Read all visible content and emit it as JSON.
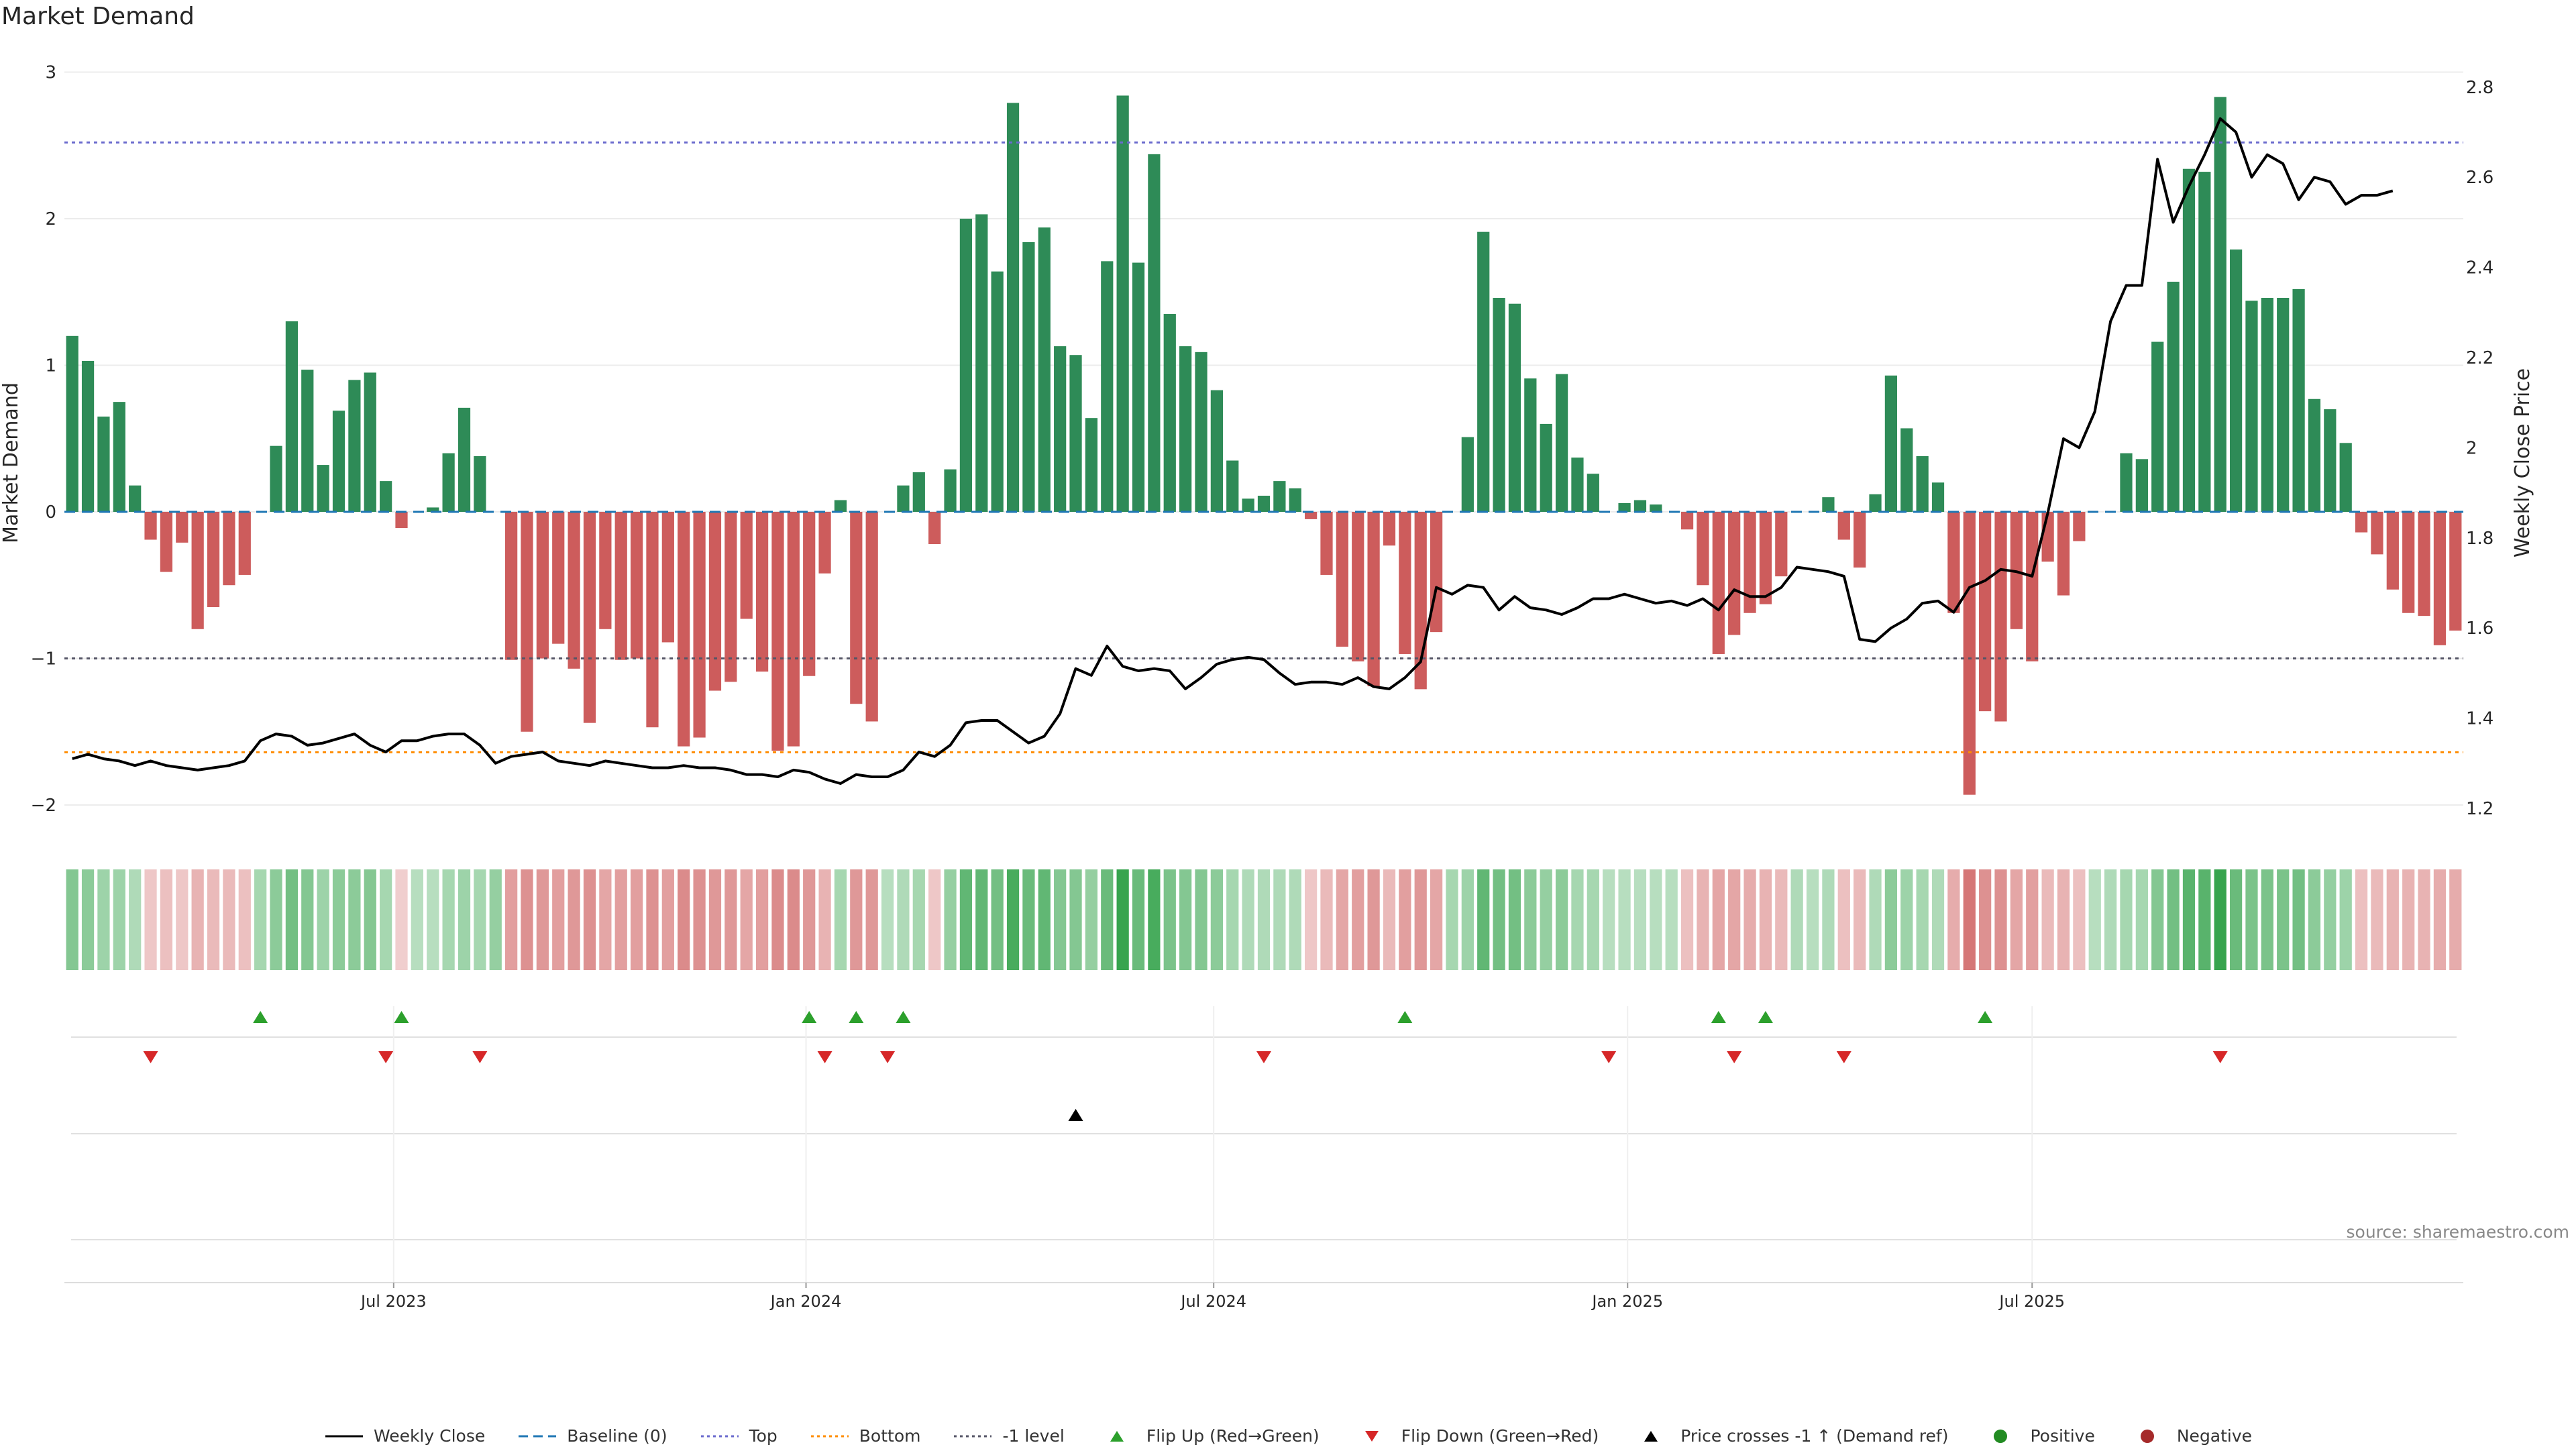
{
  "title": "Market Demand",
  "source": "source: sharemaestro.com",
  "colors": {
    "positive": "#2e8b57",
    "negative": "#cd5c5c",
    "price_line": "#000000",
    "baseline": "#1f77b4",
    "top": "#6a6acd",
    "bottom": "#ff8c00",
    "minus_one": "#555566",
    "flip_up": "#2ca02c",
    "flip_down": "#d62728",
    "cross_marker": "#000000"
  },
  "chart_data": {
    "type": "bar",
    "left_axis_label": "Market Demand",
    "right_axis_label": "Weekly Close Price",
    "left_ticks": [
      "3",
      "2",
      "1",
      "0",
      "−1",
      "−2"
    ],
    "right_ticks": [
      "2.8",
      "2.6",
      "2.4",
      "2.2",
      "2",
      "1.8",
      "1.6",
      "1.4",
      "1.2"
    ],
    "ylim_left": [
      -2.2,
      3.0
    ],
    "ylim_right": [
      1.16,
      2.83
    ],
    "x_ticks": [
      "Jul 2023",
      "Jan 2024",
      "Jul 2024",
      "Jan 2025",
      "Jul 2025"
    ],
    "x_tick_weeks": [
      21,
      47.3,
      73.3,
      99.7,
      125.5
    ],
    "levels": {
      "baseline": 0,
      "top": 2.52,
      "bottom": -1.64,
      "minus_one": -1
    },
    "demand": [
      1.2,
      1.03,
      0.65,
      0.75,
      0.18,
      -0.19,
      -0.41,
      -0.21,
      -0.8,
      -0.65,
      -0.5,
      -0.43,
      0,
      0.45,
      1.3,
      0.97,
      0.32,
      0.69,
      0.9,
      0.95,
      0.21,
      -0.11,
      0,
      0.03,
      0.4,
      0.71,
      0.38,
      0,
      -1.01,
      -1.5,
      -1.0,
      -0.9,
      -1.07,
      -1.44,
      -0.8,
      -1.01,
      -1.0,
      -1.47,
      -0.89,
      -1.6,
      -1.54,
      -1.22,
      -1.16,
      -0.73,
      -1.09,
      -1.63,
      -1.6,
      -1.12,
      -0.42,
      0.08,
      -1.31,
      -1.43,
      0,
      0.18,
      0.27,
      -0.22,
      0.29,
      2.0,
      2.03,
      1.64,
      2.79,
      1.84,
      1.94,
      1.13,
      1.07,
      0.64,
      1.71,
      2.84,
      1.7,
      2.44,
      1.35,
      1.13,
      1.09,
      0.83,
      0.35,
      0.09,
      0.11,
      0.21,
      0.16,
      -0.05,
      -0.43,
      -0.92,
      -1.02,
      -1.19,
      -0.23,
      -0.97,
      -1.21,
      -0.82,
      0,
      0.51,
      1.91,
      1.46,
      1.42,
      0.91,
      0.6,
      0.94,
      0.37,
      0.26,
      0,
      0.06,
      0.08,
      0.05,
      0,
      -0.12,
      -0.5,
      -0.97,
      -0.84,
      -0.69,
      -0.63,
      -0.44,
      0,
      0,
      0.1,
      -0.19,
      -0.38,
      0.12,
      0.93,
      0.57,
      0.38,
      0.2,
      -0.69,
      -1.93,
      -1.36,
      -1.43,
      -0.8,
      -1.02,
      -0.34,
      -0.57,
      -0.2,
      0,
      0,
      0.4,
      0.36,
      1.16,
      1.57,
      2.34,
      2.32,
      2.83,
      1.79,
      1.44,
      1.46,
      1.46,
      1.52,
      0.77,
      0.7,
      0.47,
      -0.14,
      -0.29,
      -0.53,
      -0.69,
      -0.71,
      -0.91,
      -0.81
    ],
    "close": [
      1.31,
      1.32,
      1.31,
      1.305,
      1.295,
      1.305,
      1.295,
      1.29,
      1.285,
      1.29,
      1.295,
      1.305,
      1.35,
      1.365,
      1.36,
      1.34,
      1.345,
      1.355,
      1.365,
      1.34,
      1.325,
      1.35,
      1.35,
      1.36,
      1.365,
      1.365,
      1.34,
      1.3,
      1.315,
      1.32,
      1.325,
      1.305,
      1.3,
      1.295,
      1.305,
      1.3,
      1.295,
      1.29,
      1.29,
      1.295,
      1.29,
      1.29,
      1.285,
      1.275,
      1.275,
      1.27,
      1.285,
      1.28,
      1.265,
      1.255,
      1.275,
      1.27,
      1.27,
      1.285,
      1.325,
      1.315,
      1.34,
      1.39,
      1.395,
      1.395,
      1.37,
      1.345,
      1.36,
      1.41,
      1.51,
      1.495,
      1.56,
      1.515,
      1.505,
      1.51,
      1.505,
      1.465,
      1.49,
      1.52,
      1.53,
      1.535,
      1.53,
      1.5,
      1.475,
      1.48,
      1.48,
      1.475,
      1.49,
      1.47,
      1.465,
      1.49,
      1.525,
      1.69,
      1.675,
      1.695,
      1.69,
      1.64,
      1.67,
      1.645,
      1.64,
      1.63,
      1.645,
      1.665,
      1.665,
      1.675,
      1.665,
      1.655,
      1.66,
      1.65,
      1.665,
      1.64,
      1.685,
      1.67,
      1.67,
      1.69,
      1.735,
      1.73,
      1.725,
      1.715,
      1.575,
      1.57,
      1.6,
      1.62,
      1.655,
      1.66,
      1.635,
      1.69,
      1.705,
      1.73,
      1.725,
      1.715,
      1.855,
      2.02,
      2.0,
      2.08,
      2.28,
      2.36,
      2.36,
      2.64,
      2.5,
      2.58,
      2.65,
      2.73,
      2.7,
      2.6,
      2.65,
      2.63,
      2.55,
      2.6,
      2.59,
      2.54,
      2.56,
      2.56,
      2.57
    ],
    "heat_intensity": [
      0.5,
      0.45,
      0.35,
      0.35,
      0.25,
      0.2,
      0.25,
      0.2,
      0.35,
      0.3,
      0.3,
      0.25,
      0.3,
      0.45,
      0.6,
      0.5,
      0.35,
      0.45,
      0.45,
      0.5,
      0.3,
      0.15,
      0.2,
      0.2,
      0.3,
      0.35,
      0.3,
      0.4,
      0.5,
      0.6,
      0.55,
      0.5,
      0.55,
      0.6,
      0.45,
      0.5,
      0.5,
      0.6,
      0.5,
      0.65,
      0.6,
      0.55,
      0.55,
      0.45,
      0.5,
      0.65,
      0.65,
      0.55,
      0.35,
      0.3,
      0.55,
      0.55,
      0.2,
      0.25,
      0.3,
      0.2,
      0.4,
      0.7,
      0.7,
      0.6,
      0.85,
      0.65,
      0.7,
      0.5,
      0.5,
      0.4,
      0.65,
      0.95,
      0.65,
      0.85,
      0.55,
      0.5,
      0.5,
      0.45,
      0.3,
      0.25,
      0.25,
      0.25,
      0.25,
      0.2,
      0.3,
      0.45,
      0.5,
      0.55,
      0.3,
      0.5,
      0.55,
      0.45,
      0.3,
      0.35,
      0.7,
      0.6,
      0.6,
      0.45,
      0.4,
      0.45,
      0.3,
      0.3,
      0.2,
      0.2,
      0.2,
      0.2,
      0.2,
      0.25,
      0.35,
      0.45,
      0.45,
      0.4,
      0.35,
      0.3,
      0.25,
      0.2,
      0.25,
      0.25,
      0.3,
      0.25,
      0.45,
      0.35,
      0.3,
      0.25,
      0.4,
      0.8,
      0.6,
      0.6,
      0.45,
      0.5,
      0.3,
      0.35,
      0.25,
      0.2,
      0.25,
      0.3,
      0.3,
      0.5,
      0.6,
      0.75,
      0.75,
      0.95,
      0.65,
      0.55,
      0.55,
      0.55,
      0.6,
      0.45,
      0.4,
      0.35,
      0.25,
      0.3,
      0.35,
      0.35,
      0.35,
      0.4,
      0.4
    ],
    "flip_up_weeks": [
      12,
      21,
      47,
      50,
      53,
      85,
      105,
      108,
      122
    ],
    "flip_down_weeks": [
      5,
      20,
      26,
      48,
      52,
      76,
      98,
      106,
      113,
      137
    ],
    "price_cross_weeks": [
      64
    ],
    "legend": [
      {
        "label": "Weekly Close",
        "symbol": "line-solid",
        "color": "#000000"
      },
      {
        "label": "Baseline (0)",
        "symbol": "line-dashed",
        "color": "#1f77b4"
      },
      {
        "label": "Top",
        "symbol": "line-dotted",
        "color": "#6a6acd"
      },
      {
        "label": "Bottom",
        "symbol": "line-dotted",
        "color": "#ff8c00"
      },
      {
        "label": "-1 level",
        "symbol": "line-dotted",
        "color": "#555566"
      },
      {
        "label": "Flip Up (Red→Green)",
        "symbol": "tri-up",
        "color": "#2ca02c"
      },
      {
        "label": "Flip Down (Green→Red)",
        "symbol": "tri-down",
        "color": "#d62728"
      },
      {
        "label": "Price crosses -1 ↑ (Demand ref)",
        "symbol": "tri-up",
        "color": "#000000"
      },
      {
        "label": "Positive",
        "symbol": "dot",
        "color": "#228b22"
      },
      {
        "label": "Negative",
        "symbol": "dot",
        "color": "#a52a2a"
      }
    ]
  }
}
